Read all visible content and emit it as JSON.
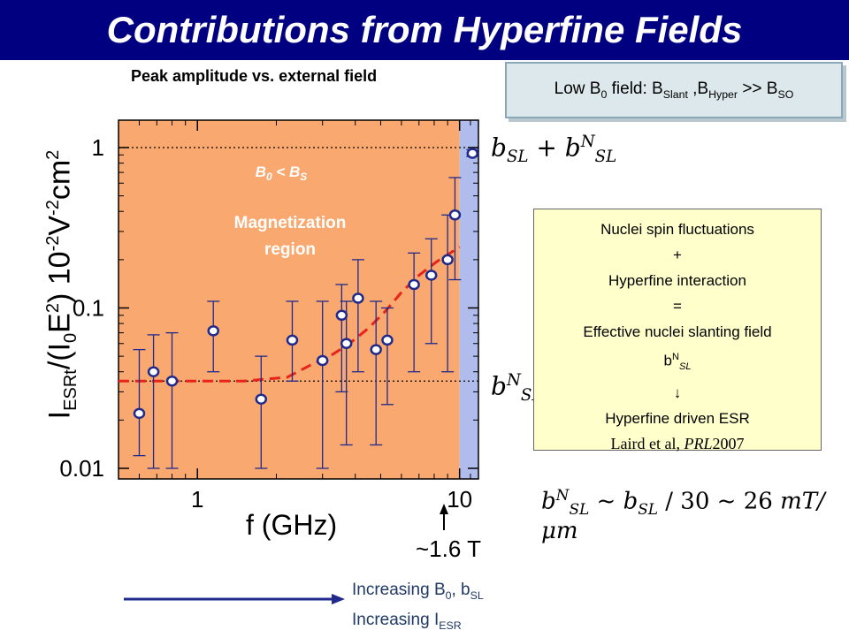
{
  "title": "Contributions from Hyperfine Fields",
  "subtitle": "Peak amplitude vs. external field",
  "condition": {
    "prefix": "Low B",
    "b0_sub": "0",
    "middle": " field: B",
    "slant_sub": "Slant",
    "sep": " ,B",
    "hyper_sub": "Hyper",
    "rel": " >> B",
    "so_sub": "SO"
  },
  "mechanism": {
    "lines": [
      "Nuclei spin fluctuations",
      "+",
      "Hyperfine interaction",
      "=",
      "Effective nuclei slanting field"
    ],
    "b_symbol": "b",
    "b_sup": "N",
    "b_sub": "SL",
    "arrow": "↓",
    "result": "Hyperfine driven ESR",
    "reference_pre": "Laird et al, ",
    "reference_journal": "PRL",
    "reference_year": "2007"
  },
  "eq_bsl_plus": {
    "b1": "b",
    "b1_sub": "SL",
    "plus": " + ",
    "b2": "b",
    "b2_sup": "N",
    "b2_sub": "SL"
  },
  "eq_bsln": {
    "b": "b",
    "sup": "N",
    "sub": "SL"
  },
  "eq_estimate": {
    "lhs": "b",
    "lhs_sup": "N",
    "lhs_sub": "SL",
    "t1": " ~ ",
    "b": "b",
    "b_sub": "SL",
    "t2": " / 30 ~ 26 ",
    "unit": "mT/μm"
  },
  "axis": {
    "ylabel": {
      "I": "I",
      "esrt": "ESRt",
      "mid": "/(I",
      "zero": "0",
      "E": "E",
      "two": "2",
      "close": ") 10",
      "m2a": "-2",
      "V": "V",
      "m2b": "-2",
      "cm": "cm",
      "sq": "2"
    },
    "xlabel": "f (GHz)"
  },
  "field_marker": "~1.6 T",
  "increasing": {
    "l1_pre": "Increasing B",
    "l1_sub": "0",
    "l1_mid": ", b",
    "l1_sub2": "SL",
    "l2_pre": "Increasing I",
    "l2_sub": "ESR"
  },
  "colors": {
    "magnetization_region": "#f9a86f",
    "high_field_region": "#afbcec",
    "fit_line": "#e8231a",
    "marker_edge": "#1f2a8c",
    "title_bg": "#000080"
  },
  "chart_data": {
    "type": "scatter",
    "x_scale": "log",
    "y_scale": "log",
    "xlim": [
      0.5,
      11.8
    ],
    "ylim": [
      0.01,
      1
    ],
    "x_ticks": [
      1,
      10
    ],
    "x_tick_labels": [
      "1",
      "10"
    ],
    "y_ticks": [
      0.01,
      0.1,
      1
    ],
    "y_tick_labels": [
      "0.01",
      "0.1",
      "1"
    ],
    "ylabel": "I_ESRt/(I_0 E^2) 10^-2 V^-2 cm^2",
    "xlabel": "f (GHz)",
    "regions": [
      {
        "label": "Magnetization region",
        "condition": "B0 < BS",
        "x_range": [
          0.5,
          10
        ]
      },
      {
        "label": "",
        "x_range": [
          10,
          11.8
        ]
      }
    ],
    "reference_lines": [
      1,
      0.035
    ],
    "points": [
      {
        "x": 0.6,
        "y": 0.022,
        "yerr_low": 0.012,
        "yerr_high": 0.055
      },
      {
        "x": 0.68,
        "y": 0.04,
        "yerr_low": 0.01,
        "yerr_high": 0.068
      },
      {
        "x": 0.8,
        "y": 0.035,
        "yerr_low": 0.01,
        "yerr_high": 0.07
      },
      {
        "x": 1.15,
        "y": 0.072,
        "yerr_low": 0.04,
        "yerr_high": 0.11
      },
      {
        "x": 1.75,
        "y": 0.027,
        "yerr_low": 0.01,
        "yerr_high": 0.05
      },
      {
        "x": 2.3,
        "y": 0.063,
        "yerr_low": 0.035,
        "yerr_high": 0.11
      },
      {
        "x": 3.0,
        "y": 0.047,
        "yerr_low": 0.01,
        "yerr_high": 0.11
      },
      {
        "x": 3.55,
        "y": 0.09,
        "yerr_low": 0.03,
        "yerr_high": 0.14
      },
      {
        "x": 3.7,
        "y": 0.06,
        "yerr_low": 0.014,
        "yerr_high": 0.11
      },
      {
        "x": 4.1,
        "y": 0.115,
        "yerr_low": 0.04,
        "yerr_high": 0.2
      },
      {
        "x": 4.8,
        "y": 0.055,
        "yerr_low": 0.014,
        "yerr_high": 0.11
      },
      {
        "x": 5.3,
        "y": 0.063,
        "yerr_low": 0.025,
        "yerr_high": 0.1
      },
      {
        "x": 6.7,
        "y": 0.14,
        "yerr_low": 0.04,
        "yerr_high": 0.22
      },
      {
        "x": 7.8,
        "y": 0.16,
        "yerr_low": 0.06,
        "yerr_high": 0.27
      },
      {
        "x": 9.0,
        "y": 0.2,
        "yerr_low": 0.04,
        "yerr_high": 0.38
      },
      {
        "x": 9.6,
        "y": 0.38,
        "yerr_low": 0.15,
        "yerr_high": 0.65
      },
      {
        "x": 11.2,
        "y": 0.92,
        "yerr_low": 0.88,
        "yerr_high": 0.97
      }
    ],
    "fit": [
      {
        "x": 0.5,
        "y": 0.035
      },
      {
        "x": 1.5,
        "y": 0.035
      },
      {
        "x": 2.2,
        "y": 0.037
      },
      {
        "x": 2.7,
        "y": 0.044
      },
      {
        "x": 3.2,
        "y": 0.05
      },
      {
        "x": 3.8,
        "y": 0.06
      },
      {
        "x": 4.5,
        "y": 0.075
      },
      {
        "x": 5.2,
        "y": 0.095
      },
      {
        "x": 6.0,
        "y": 0.125
      },
      {
        "x": 7.0,
        "y": 0.16
      },
      {
        "x": 8.2,
        "y": 0.195
      },
      {
        "x": 10.0,
        "y": 0.24
      }
    ]
  }
}
